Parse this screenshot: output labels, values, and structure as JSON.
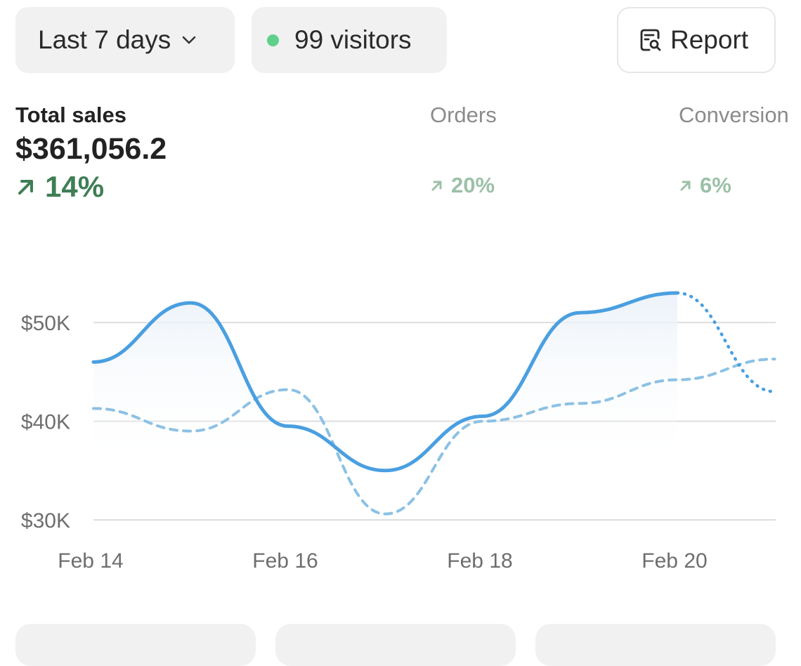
{
  "toolbar": {
    "date_range_label": "Last 7 days",
    "visitors_label": "99 visitors",
    "report_label": "Report",
    "live_dot_color": "#5fd08a"
  },
  "metrics": {
    "total_sales": {
      "label": "Total sales",
      "value": "$361,056.2",
      "change": "14%",
      "change_color": "#3f7e55"
    },
    "orders": {
      "label": "Orders",
      "change": "20%",
      "change_color": "#9cc0a8"
    },
    "conversion": {
      "label": "Conversion",
      "change": "6%",
      "change_color": "#9cc0a8"
    }
  },
  "chart_data": {
    "type": "line",
    "x": [
      "Feb 14",
      "Feb 15",
      "Feb 16",
      "Feb 17",
      "Feb 18",
      "Feb 19",
      "Feb 20",
      "Feb 21"
    ],
    "x_tick_labels": [
      "Feb 14",
      "Feb 16",
      "Feb 18",
      "Feb 20"
    ],
    "y_tick_labels": [
      "$30K",
      "$40K",
      "$50K"
    ],
    "y_ticks": [
      30000,
      40000,
      50000
    ],
    "ylim": [
      30000,
      53500
    ],
    "grid": true,
    "series": [
      {
        "style": "solid",
        "color": "#4a9fe0",
        "values": [
          46000,
          52000,
          39500,
          35000,
          40500,
          51000,
          53000,
          43000
        ],
        "dotted_after_index": 6
      },
      {
        "style": "dashed",
        "color": "#8cc1e4",
        "values": [
          41300,
          39000,
          43200,
          30600,
          40000,
          41800,
          44200,
          46300
        ]
      }
    ]
  }
}
